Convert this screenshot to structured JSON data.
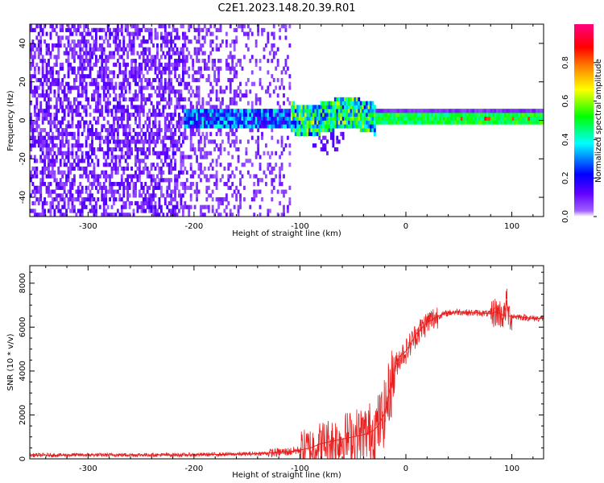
{
  "title": "C2E1.2023.148.20.39.R01",
  "chart_data": [
    {
      "type": "heatmap",
      "xlabel": "Height of straight line (km)",
      "ylabel": "Frequency (Hz)",
      "xlim": [
        -355,
        130
      ],
      "ylim": [
        -50,
        50
      ],
      "xticks": [
        -300,
        -200,
        -100,
        0,
        100
      ],
      "yticks": [
        -40,
        -20,
        0,
        20,
        40
      ],
      "colorbar": {
        "label": "Normalized spectral amplitude",
        "range": [
          0,
          1
        ],
        "ticks": [
          0.0,
          0.2,
          0.4,
          0.6,
          0.8
        ],
        "colormap": [
          "#ffffff",
          "#8000ff",
          "#0000ff",
          "#00ffff",
          "#00ff00",
          "#ffff00",
          "#ff8000",
          "#ff0000",
          "#ff0080"
        ]
      },
      "regions": [
        {
          "x_range": [
            -355,
            -210
          ],
          "freq_range": [
            -50,
            50
          ],
          "amplitude": "low, scattered (~0.05-0.15)"
        },
        {
          "x_range": [
            -210,
            -30
          ],
          "freq_range": [
            -10,
            8
          ],
          "amplitude": "0.1-0.6"
        },
        {
          "x_range": [
            -30,
            130
          ],
          "freq_range": [
            -2,
            3
          ],
          "amplitude": "0.4-0.9 (narrow band)"
        }
      ]
    },
    {
      "type": "line",
      "xlabel": "Height of straight line (km)",
      "ylabel": "SNR (10 * v/v)",
      "xlim": [
        -355,
        130
      ],
      "ylim": [
        0,
        8800
      ],
      "xticks": [
        -300,
        -200,
        -100,
        0,
        100
      ],
      "yticks": [
        0,
        2000,
        4000,
        6000,
        8000
      ],
      "color": "#e82020",
      "series": [
        {
          "x": [
            -355,
            -330,
            -300,
            -270,
            -240,
            -210,
            -180,
            -150,
            -130,
            -110,
            -100,
            -90,
            -80,
            -70,
            -60,
            -50,
            -40,
            -30,
            -25,
            -20,
            -15,
            -10,
            -5,
            0,
            5,
            10,
            20,
            30,
            40,
            50,
            60,
            70,
            80,
            85,
            90,
            93,
            95,
            97,
            100,
            110,
            120,
            130
          ],
          "values": [
            170,
            170,
            180,
            180,
            180,
            180,
            200,
            220,
            260,
            330,
            400,
            500,
            700,
            800,
            900,
            1000,
            1100,
            1300,
            1600,
            2100,
            3200,
            4200,
            4700,
            4900,
            5300,
            5700,
            6200,
            6500,
            6650,
            6700,
            6650,
            6650,
            6600,
            6700,
            6600,
            6500,
            7200,
            6500,
            6500,
            6450,
            6400,
            6400
          ]
        }
      ]
    }
  ]
}
